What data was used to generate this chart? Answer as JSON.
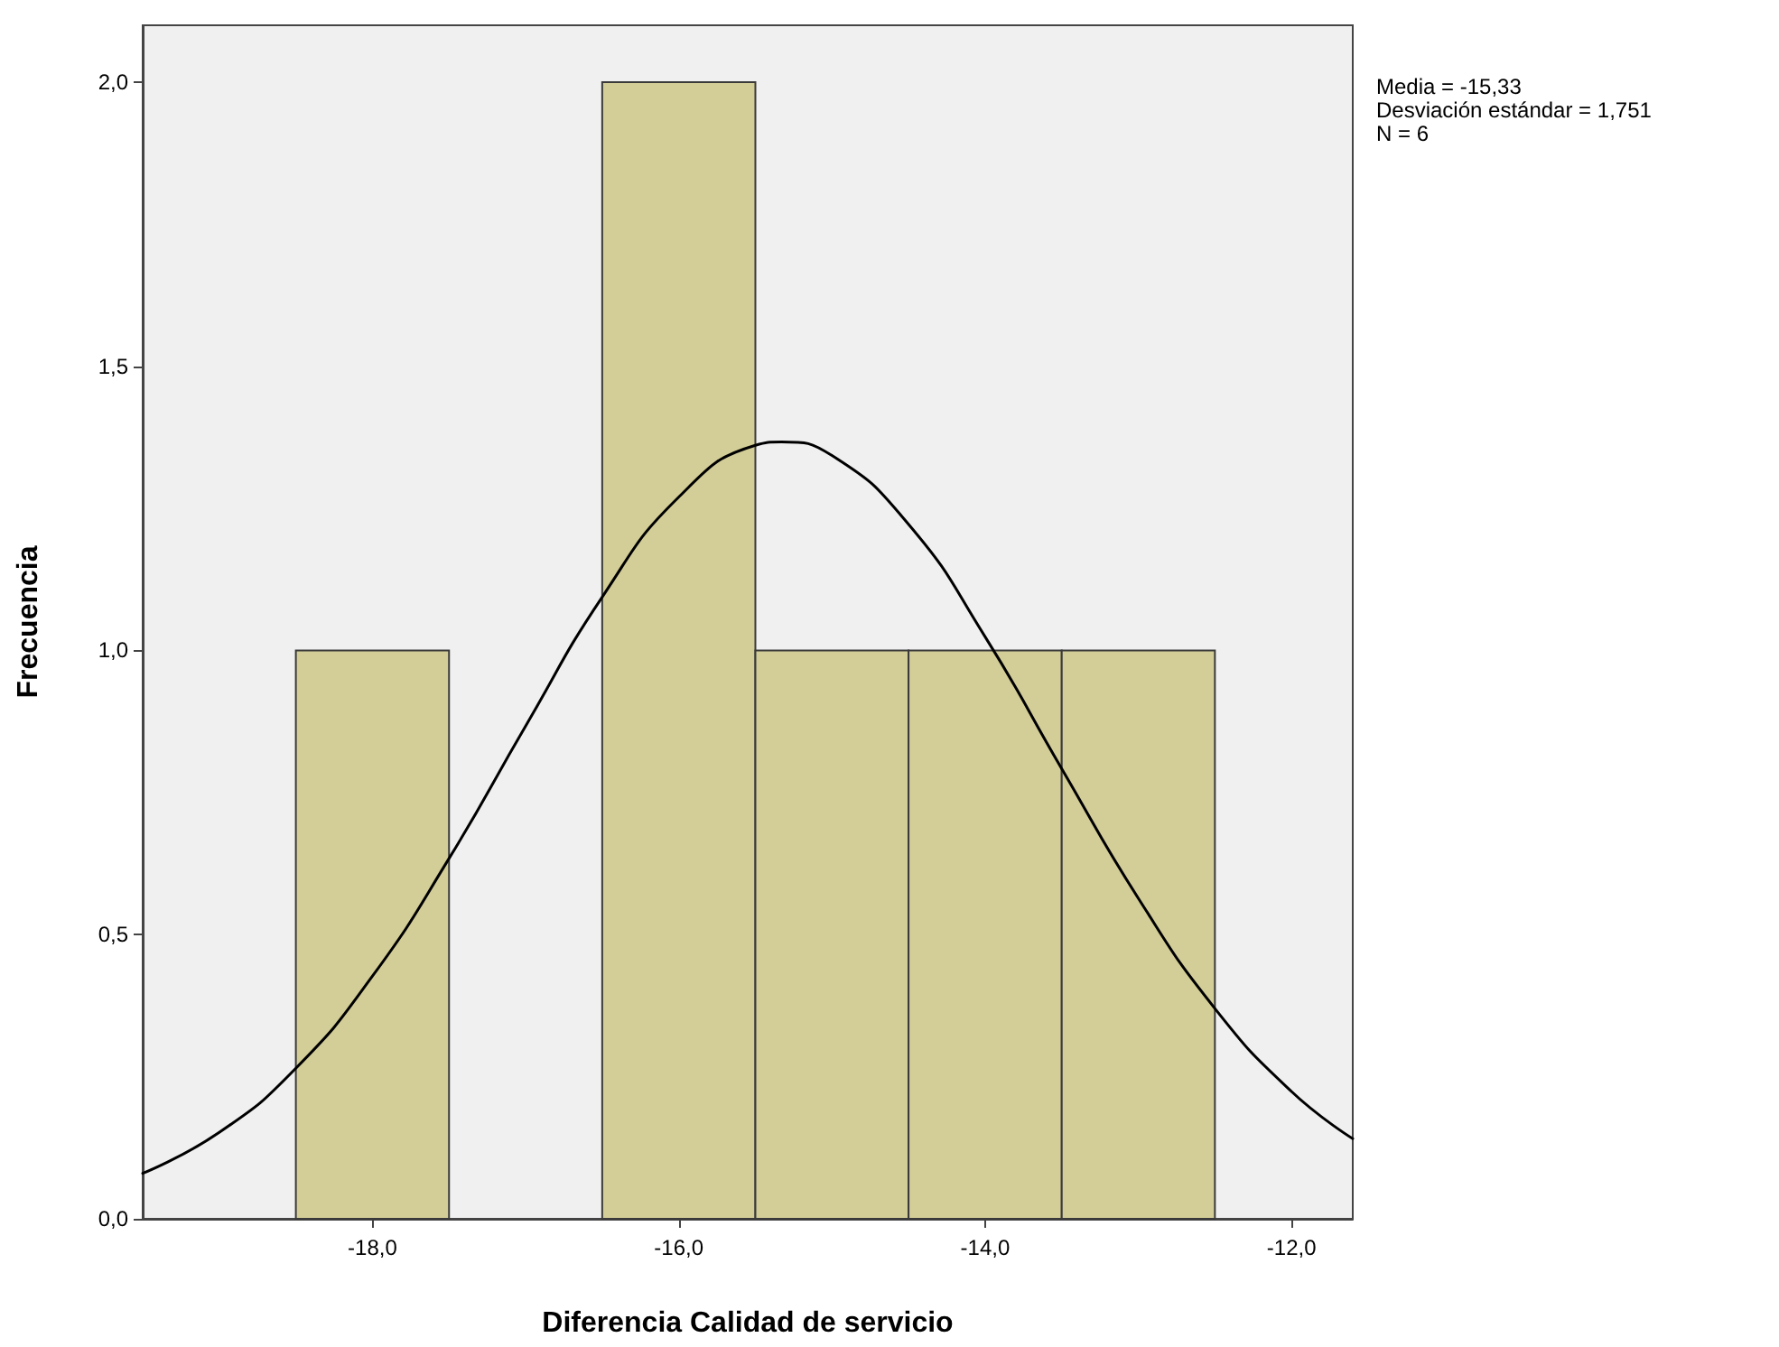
{
  "chart_data": {
    "type": "histogram",
    "xlabel": "Diferencia Calidad de servicio",
    "ylabel": "Frecuencia",
    "annotations": [
      "Media = -15,33",
      "Desviación estándar = 1,751",
      "N = 6"
    ],
    "series": [
      {
        "color": "#d3ce97",
        "bins": [
          -18.5,
          -17.5,
          -16.5,
          -15.5,
          -14.5,
          -13.5,
          -12.5
        ],
        "values": [
          1,
          0,
          2,
          1,
          1,
          1
        ]
      },
      {
        "type": "line",
        "color": "#000000",
        "x": [
          -19.5,
          -19,
          -18.5,
          -18,
          -17.5,
          -17,
          -16.5,
          -16,
          -15.5,
          -15.33,
          -15,
          -14.5,
          -14,
          -13.5,
          -13,
          -12.5,
          -12,
          -11.6
        ],
        "values": [
          0.08,
          0.152,
          0.265,
          0.427,
          0.634,
          0.867,
          1.094,
          1.27,
          1.361,
          1.367,
          1.343,
          1.222,
          1.024,
          0.792,
          0.564,
          0.37,
          0.224,
          0.141
        ]
      }
    ],
    "xlim": [
      -19.5,
      -11.6
    ],
    "ylim": [
      0,
      2.1
    ],
    "xticks": [
      {
        "value": -18,
        "label": "-18,0"
      },
      {
        "value": -16,
        "label": "-16,0"
      },
      {
        "value": -14,
        "label": "-14,0"
      },
      {
        "value": -12,
        "label": "-12,0"
      }
    ],
    "yticks": [
      {
        "value": 0,
        "label": "0,0"
      },
      {
        "value": 0.5,
        "label": "0,5"
      },
      {
        "value": 1,
        "label": "1,0"
      },
      {
        "value": 1.5,
        "label": "1,5"
      },
      {
        "value": 2,
        "label": "2,0"
      }
    ],
    "grid": false,
    "marker": "none",
    "line_style": "solid"
  }
}
